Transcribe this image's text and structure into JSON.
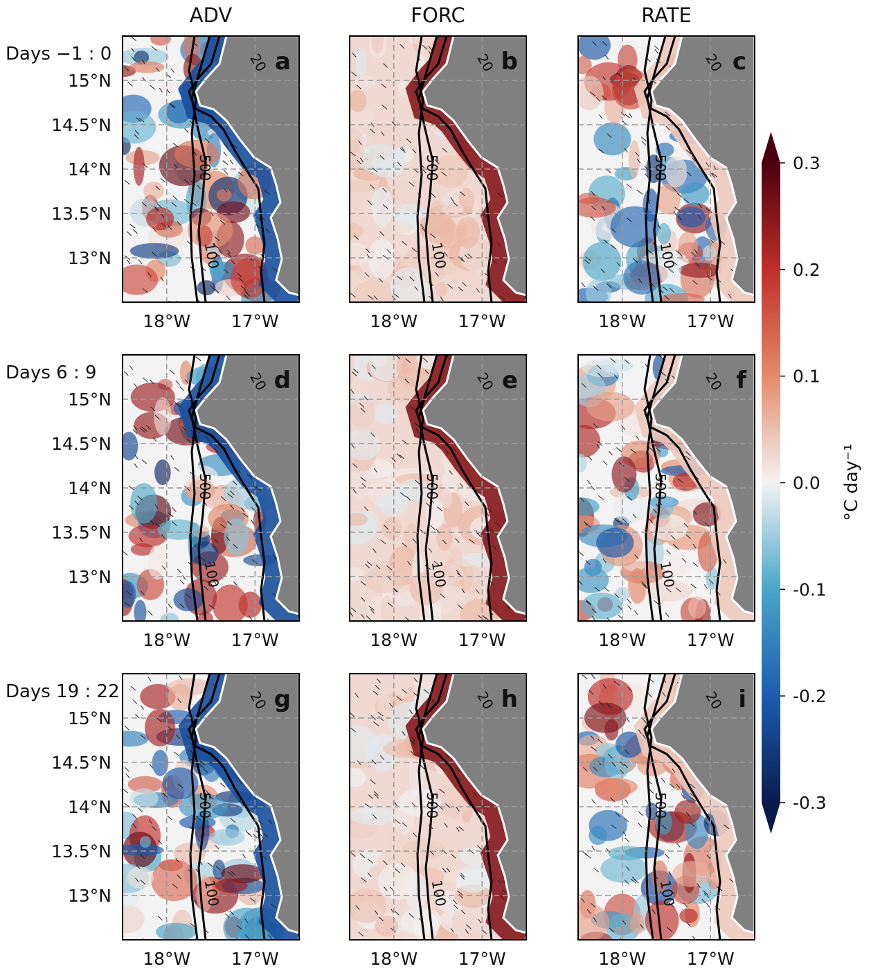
{
  "columns": [
    "ADV",
    "FORC",
    "RATE"
  ],
  "rows": [
    {
      "label": "Days −1 : 0",
      "panels": [
        "a",
        "b",
        "c"
      ]
    },
    {
      "label": "Days 6  :  9",
      "panels": [
        "d",
        "e",
        "f"
      ]
    },
    {
      "label": "Days 19  :  22",
      "panels": [
        "g",
        "h",
        "i"
      ]
    }
  ],
  "lat_lim": [
    12.5,
    15.5
  ],
  "lon_lim": [
    -18.5,
    -16.5
  ],
  "lat_ticks": [
    {
      "value": 15,
      "label": "15°N"
    },
    {
      "value": 14.5,
      "label": "14.5°N"
    },
    {
      "value": 14,
      "label": "14°N"
    },
    {
      "value": 13.5,
      "label": "13.5°N"
    },
    {
      "value": 13,
      "label": "13°N"
    }
  ],
  "lon_ticks": [
    {
      "value": -18,
      "label": "18°W"
    },
    {
      "value": -17,
      "label": "17°W"
    }
  ],
  "contour_labels": [
    "500",
    "100",
    "20"
  ],
  "colorbar": {
    "label": "°C day⁻¹",
    "lim": [
      -0.3,
      0.3
    ],
    "ticks": [
      0.3,
      0.2,
      0.1,
      {
        "value": 0,
        "label": "0.0"
      },
      -0.1,
      -0.2,
      -0.3
    ],
    "colors": [
      "#0b1a4d",
      "#1c5cb0",
      "#4aa6c9",
      "#f3f3f3",
      "#e48a6b",
      "#c02e2a",
      "#4a0010"
    ]
  }
}
